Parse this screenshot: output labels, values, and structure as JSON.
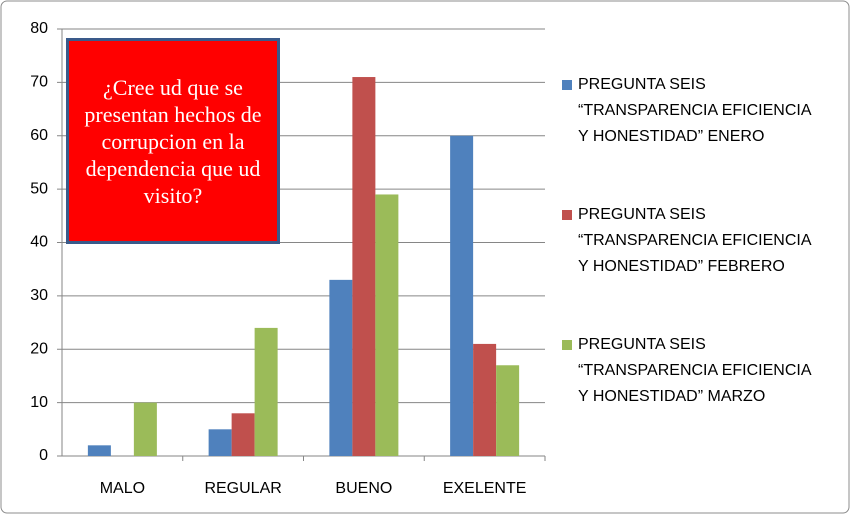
{
  "chart_data": {
    "type": "bar",
    "annotation": "¿Cree ud que se presentan hechos de corrupcion en la dependencia que ud visito?",
    "categories": [
      "MALO",
      "REGULAR",
      "BUENO",
      "EXELENTE"
    ],
    "series": [
      {
        "name": "PREGUNTA SEIS “TRANSPARENCIA EFICIENCIA Y HONESTIDAD” ENERO",
        "color": "#4f81bd",
        "values": [
          2,
          5,
          33,
          60
        ]
      },
      {
        "name": "PREGUNTA SEIS “TRANSPARENCIA EFICIENCIA Y HONESTIDAD” FEBRERO",
        "color": "#c0504d",
        "values": [
          0,
          8,
          71,
          21
        ]
      },
      {
        "name": "PREGUNTA SEIS “TRANSPARENCIA EFICIENCIA Y HONESTIDAD” MARZO",
        "color": "#9bbb59",
        "values": [
          10,
          24,
          49,
          17
        ]
      }
    ],
    "ylim": [
      0,
      80
    ],
    "yticks": [
      0,
      10,
      20,
      30,
      40,
      50,
      60,
      70,
      80
    ],
    "grid": true
  }
}
